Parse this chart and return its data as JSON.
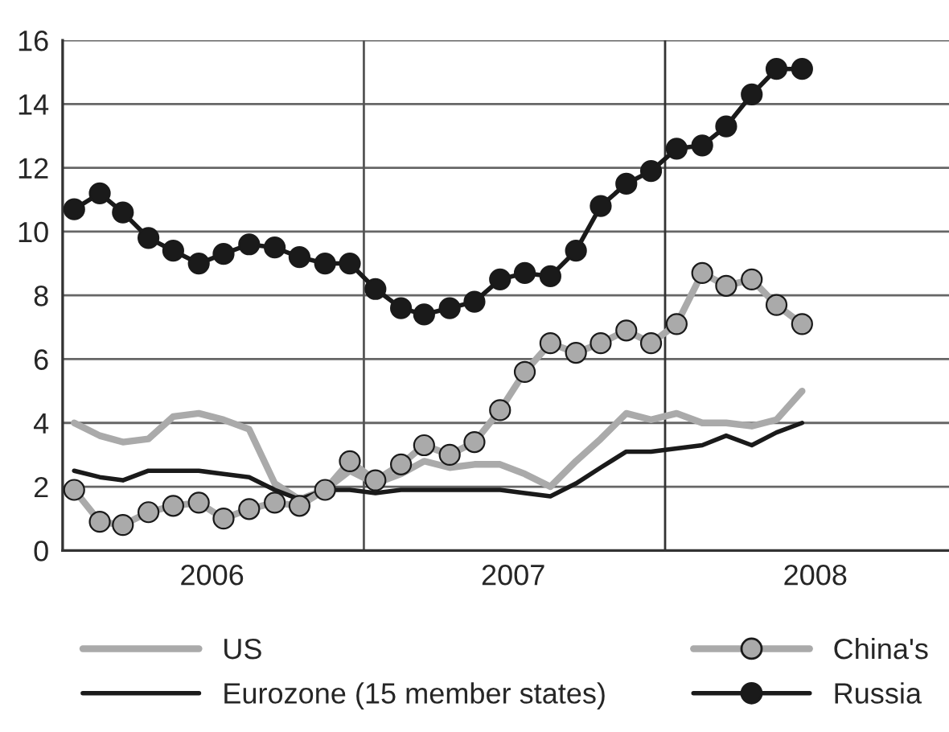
{
  "chart_data": {
    "type": "line",
    "x": [
      "2006-01-15",
      "2006-02-15",
      "2006-03-15",
      "2006-04-15",
      "2006-05-15",
      "2006-06-15",
      "2006-07-15",
      "2006-08-15",
      "2006-09-15",
      "2006-10-15",
      "2006-11-15",
      "2006-12-15",
      "2007-01-15",
      "2007-02-15",
      "2007-03-15",
      "2007-04-15",
      "2007-05-15",
      "2007-06-15",
      "2007-07-15",
      "2007-08-15",
      "2007-09-15",
      "2007-10-15",
      "2007-11-15",
      "2007-12-15",
      "2008-01-15",
      "2008-02-15",
      "2008-03-15",
      "2008-04-15",
      "2008-05-15",
      "2008-06-15"
    ],
    "series": [
      {
        "name": "US",
        "color": "#aaaaaa",
        "marker": "none",
        "values": [
          4.0,
          3.6,
          3.4,
          3.5,
          4.2,
          4.3,
          4.1,
          3.8,
          2.1,
          1.6,
          1.9,
          2.5,
          2.1,
          2.4,
          2.8,
          2.6,
          2.7,
          2.7,
          2.4,
          2.0,
          2.8,
          3.5,
          4.3,
          4.1,
          4.3,
          4.0,
          4.0,
          3.9,
          4.1,
          5.0
        ]
      },
      {
        "name": "Eurozone (15 member states)",
        "color": "#1a1a1a",
        "marker": "none",
        "values": [
          2.5,
          2.3,
          2.2,
          2.5,
          2.5,
          2.5,
          2.4,
          2.3,
          1.9,
          1.6,
          1.9,
          1.9,
          1.8,
          1.9,
          1.9,
          1.9,
          1.9,
          1.9,
          1.8,
          1.7,
          2.1,
          2.6,
          3.1,
          3.1,
          3.2,
          3.3,
          3.6,
          3.3,
          3.7,
          4.0
        ]
      },
      {
        "name": "China's",
        "color": "#aaaaaa",
        "marker": "circle",
        "values": [
          1.9,
          0.9,
          0.8,
          1.2,
          1.4,
          1.5,
          1.0,
          1.3,
          1.5,
          1.4,
          1.9,
          2.8,
          2.2,
          2.7,
          3.3,
          3.0,
          3.4,
          4.4,
          5.6,
          6.5,
          6.2,
          6.5,
          6.9,
          6.5,
          7.1,
          8.7,
          8.3,
          8.5,
          7.7,
          7.1
        ]
      },
      {
        "name": "Russia",
        "color": "#1a1a1a",
        "marker": "circle",
        "values": [
          10.7,
          11.2,
          10.6,
          9.8,
          9.4,
          9.0,
          9.3,
          9.6,
          9.5,
          9.2,
          9.0,
          9.0,
          8.2,
          7.6,
          7.4,
          7.6,
          7.8,
          8.5,
          8.7,
          8.6,
          9.4,
          10.8,
          11.5,
          11.9,
          12.6,
          12.7,
          13.3,
          14.3,
          15.1,
          15.1
        ]
      }
    ],
    "xlim": [
      "2006-01-01",
      "2008-12-10"
    ],
    "xticks": [
      {
        "value": "2006-07-01",
        "label": "2006"
      },
      {
        "value": "2007-07-01",
        "label": "2007"
      },
      {
        "value": "2008-07-01",
        "label": "2008"
      }
    ],
    "ylim": [
      0,
      16
    ],
    "yticks": [
      0,
      2,
      4,
      6,
      8,
      10,
      12,
      14,
      16
    ],
    "ref_lines": [
      {
        "axis": "x",
        "value": "2007-01-01",
        "label": null,
        "color": "#555555"
      },
      {
        "axis": "x",
        "value": "2008-01-01",
        "label": null,
        "color": "#333333"
      }
    ],
    "grid": "y",
    "legend": "bottom",
    "line_style": "solid"
  }
}
